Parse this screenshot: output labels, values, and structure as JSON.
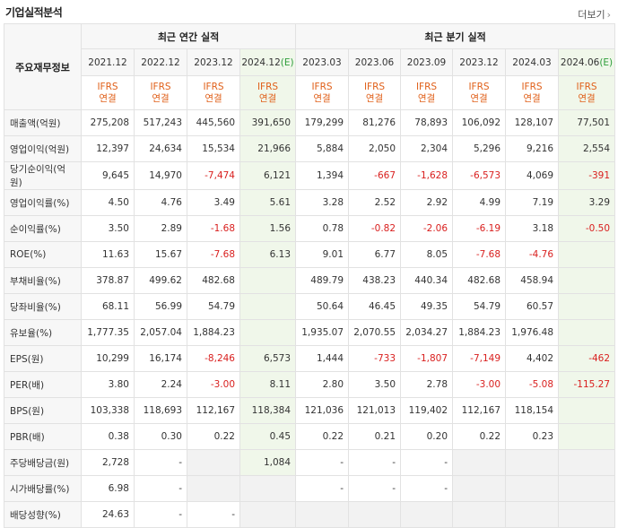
{
  "section": {
    "title": "기업실적분석",
    "more_label": "더보기",
    "more_icon": "chevron-right-icon"
  },
  "header": {
    "row_label": "주요재무정보",
    "annual_label": "최근 연간 실적",
    "quarter_label": "최근 분기 실적",
    "periods": [
      "2021.12",
      "2022.12",
      "2023.12",
      "2024.12(E)",
      "2023.03",
      "2023.06",
      "2023.09",
      "2023.12",
      "2024.03",
      "2024.06(E)"
    ],
    "ifrs_line1": "IFRS",
    "ifrs_line2": "연결"
  },
  "colors": {
    "negative": "#d9201f",
    "ifrs": "#e0601a",
    "estimate_bg": "#f0f7ea",
    "estimate_mark": "#2e9e3a"
  },
  "rows": [
    {
      "label": "매출액(억원)",
      "values": [
        "275,208",
        "517,243",
        "445,560",
        "391,650",
        "179,299",
        "81,276",
        "78,893",
        "106,092",
        "128,107",
        "77,501"
      ]
    },
    {
      "label": "영업이익(억원)",
      "values": [
        "12,397",
        "24,634",
        "15,534",
        "21,966",
        "5,884",
        "2,050",
        "2,304",
        "5,296",
        "9,216",
        "2,554"
      ]
    },
    {
      "label": "당기순이익(억원)",
      "values": [
        "9,645",
        "14,970",
        "-7,474",
        "6,121",
        "1,394",
        "-667",
        "-1,628",
        "-6,573",
        "4,069",
        "-391"
      ]
    },
    {
      "label": "영업이익률(%)",
      "values": [
        "4.50",
        "4.76",
        "3.49",
        "5.61",
        "3.28",
        "2.52",
        "2.92",
        "4.99",
        "7.19",
        "3.29"
      ]
    },
    {
      "label": "순이익률(%)",
      "values": [
        "3.50",
        "2.89",
        "-1.68",
        "1.56",
        "0.78",
        "-0.82",
        "-2.06",
        "-6.19",
        "3.18",
        "-0.50"
      ]
    },
    {
      "label": "ROE(%)",
      "values": [
        "11.63",
        "15.67",
        "-7.68",
        "6.13",
        "9.01",
        "6.77",
        "8.05",
        "-7.68",
        "-4.76",
        ""
      ]
    },
    {
      "label": "부채비율(%)",
      "values": [
        "378.87",
        "499.62",
        "482.68",
        "",
        "489.79",
        "438.23",
        "440.34",
        "482.68",
        "458.94",
        ""
      ]
    },
    {
      "label": "당좌비율(%)",
      "values": [
        "68.11",
        "56.99",
        "54.79",
        "",
        "50.64",
        "46.45",
        "49.35",
        "54.79",
        "60.57",
        ""
      ]
    },
    {
      "label": "유보율(%)",
      "values": [
        "1,777.35",
        "2,057.04",
        "1,884.23",
        "",
        "1,935.07",
        "2,070.55",
        "2,034.27",
        "1,884.23",
        "1,976.48",
        ""
      ]
    },
    {
      "label": "EPS(원)",
      "values": [
        "10,299",
        "16,174",
        "-8,246",
        "6,573",
        "1,444",
        "-733",
        "-1,807",
        "-7,149",
        "4,402",
        "-462"
      ]
    },
    {
      "label": "PER(배)",
      "values": [
        "3.80",
        "2.24",
        "-3.00",
        "8.11",
        "2.80",
        "3.50",
        "2.78",
        "-3.00",
        "-5.08",
        "-115.27"
      ]
    },
    {
      "label": "BPS(원)",
      "values": [
        "103,338",
        "118,693",
        "112,167",
        "118,384",
        "121,036",
        "121,013",
        "119,402",
        "112,167",
        "118,154",
        ""
      ]
    },
    {
      "label": "PBR(배)",
      "values": [
        "0.38",
        "0.30",
        "0.22",
        "0.45",
        "0.22",
        "0.21",
        "0.20",
        "0.22",
        "0.23",
        ""
      ]
    },
    {
      "label": "주당배당금(원)",
      "values": [
        "2,728",
        "-",
        "",
        "1,084",
        "-",
        "-",
        "-",
        "",
        "",
        ""
      ]
    },
    {
      "label": "시가배당률(%)",
      "values": [
        "6.98",
        "-",
        "",
        "",
        "-",
        "-",
        "-",
        "",
        "",
        ""
      ]
    },
    {
      "label": "배당성향(%)",
      "values": [
        "24.63",
        "-",
        "-",
        "",
        "",
        "",
        "",
        "",
        "",
        ""
      ]
    }
  ]
}
